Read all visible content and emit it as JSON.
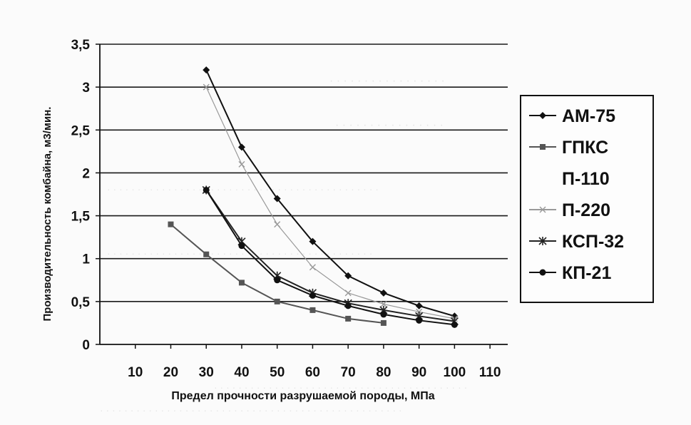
{
  "chart_data": {
    "type": "line",
    "ylabel": "Производительность комбайна, м3/мин.",
    "xlabel": "Предел прочности разрушаемой породы, МПа",
    "xlim": [
      0,
      115
    ],
    "ylim": [
      0,
      3.5
    ],
    "x_ticks": [
      10,
      20,
      30,
      40,
      50,
      60,
      70,
      80,
      90,
      100,
      110
    ],
    "y_ticks": [
      "0",
      "0,5",
      "1",
      "1,5",
      "2",
      "2,5",
      "3",
      "3,5"
    ],
    "grid": "horizontal",
    "legend_position": "right",
    "series": [
      {
        "name": "АМ-75",
        "marker": "diamond",
        "color": "#111111",
        "x": [
          30,
          40,
          50,
          60,
          70,
          80,
          90,
          100
        ],
        "y": [
          3.2,
          2.3,
          1.7,
          1.2,
          0.8,
          0.6,
          0.45,
          0.33
        ]
      },
      {
        "name": "ГПКС",
        "marker": "square",
        "color": "#555555",
        "x": [
          20,
          30,
          40,
          50,
          60,
          70,
          80
        ],
        "y": [
          1.4,
          1.05,
          0.72,
          0.5,
          0.4,
          0.3,
          0.25
        ]
      },
      {
        "name": "П-110",
        "marker": "none",
        "color": "#ffffff",
        "x": [],
        "y": []
      },
      {
        "name": "П-220",
        "marker": "x",
        "color": "#999999",
        "x": [
          30,
          40,
          50,
          60,
          70,
          80,
          90,
          100
        ],
        "y": [
          3.0,
          2.1,
          1.4,
          0.9,
          0.6,
          0.47,
          0.38,
          0.3
        ]
      },
      {
        "name": "КСП-32",
        "marker": "star",
        "color": "#222222",
        "x": [
          30,
          40,
          50,
          60,
          70,
          80,
          90,
          100
        ],
        "y": [
          1.8,
          1.2,
          0.8,
          0.6,
          0.48,
          0.4,
          0.33,
          0.27
        ]
      },
      {
        "name": "КП-21",
        "marker": "circle",
        "color": "#111111",
        "x": [
          30,
          40,
          50,
          60,
          70,
          80,
          90,
          100
        ],
        "y": [
          1.8,
          1.15,
          0.75,
          0.57,
          0.45,
          0.35,
          0.28,
          0.23
        ]
      }
    ]
  }
}
